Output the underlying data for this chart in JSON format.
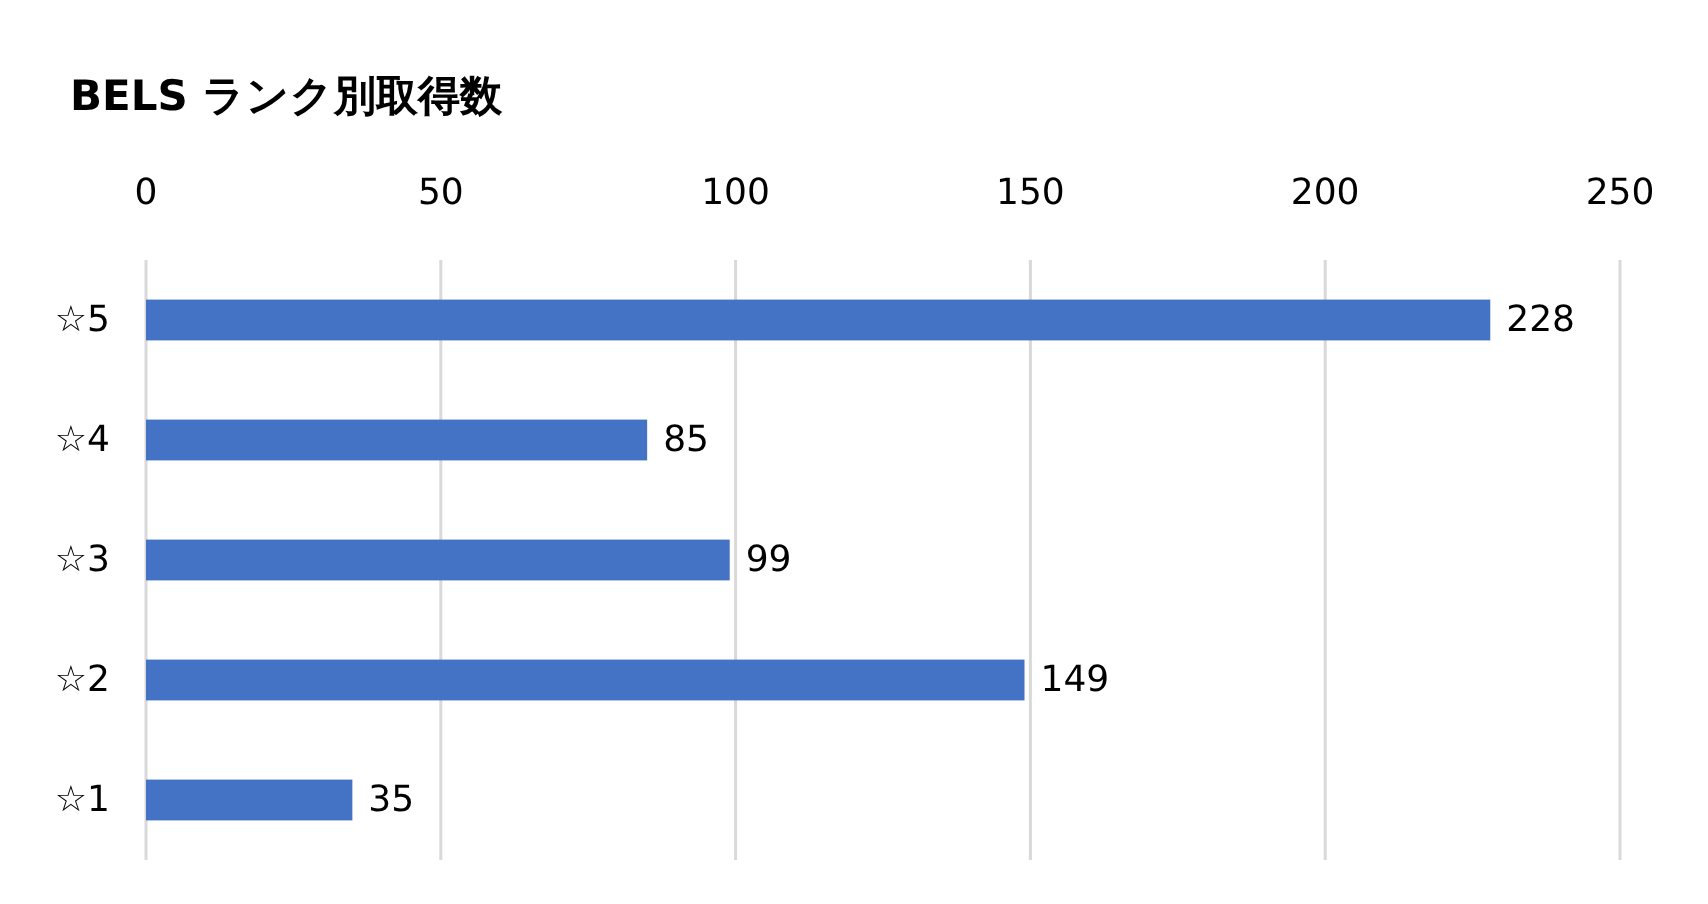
{
  "chart_data": {
    "type": "bar",
    "title": "BELS ランク別取得数",
    "orientation": "horizontal",
    "categories": [
      "☆5",
      "☆4",
      "☆3",
      "☆2",
      "☆1"
    ],
    "values": [
      228,
      85,
      99,
      149,
      35
    ],
    "color": "#4472c4",
    "xlim": [
      0,
      250
    ],
    "xticks": [
      0,
      50,
      100,
      150,
      200,
      250
    ],
    "grid": "x",
    "data_labels": true
  }
}
